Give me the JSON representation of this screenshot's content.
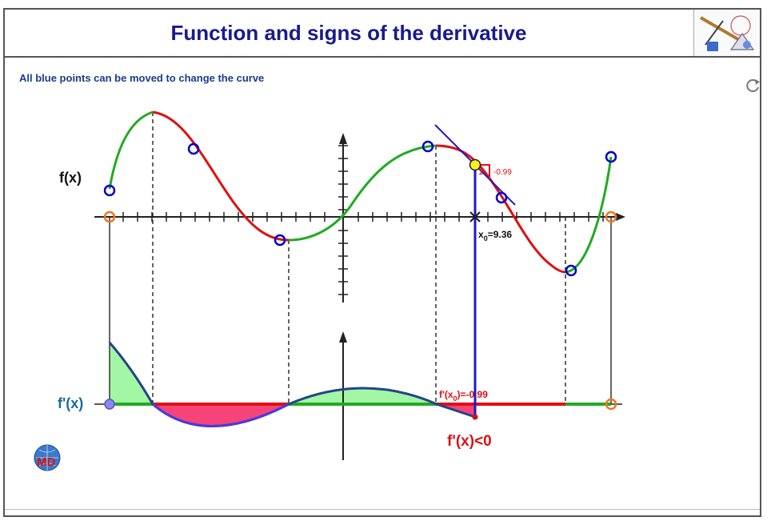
{
  "header": {
    "title": "Function and signs of the derivative"
  },
  "hint": "All blue points can be moved to change the curve",
  "graph": {
    "f_label": "f(x)",
    "fprime_label": "f'(x)",
    "x0_prefix": "x",
    "x0_sub": "0",
    "x0_value": "=9.36",
    "slope_run": "1",
    "slope_value": "-0.99",
    "fprime_at_x0_prefix": "f'(x",
    "fprime_at_x0_sub": "0",
    "fprime_at_x0_value": ")=-0.99",
    "sign_text": "f'(x)<0"
  },
  "colors": {
    "increasing": "#22aa22",
    "decreasing": "#dd1111",
    "control_point": "#0000cc",
    "endpoint": "#ee7722",
    "tangent": "#1a1acc",
    "positive_fill": "#99f599",
    "negative_fill": "#f5306a",
    "title": "#1a1a8c"
  },
  "icons": {
    "reset": "refresh-icon",
    "logo": "geometry-tools-icon",
    "brand": "globe-md-icon"
  }
}
